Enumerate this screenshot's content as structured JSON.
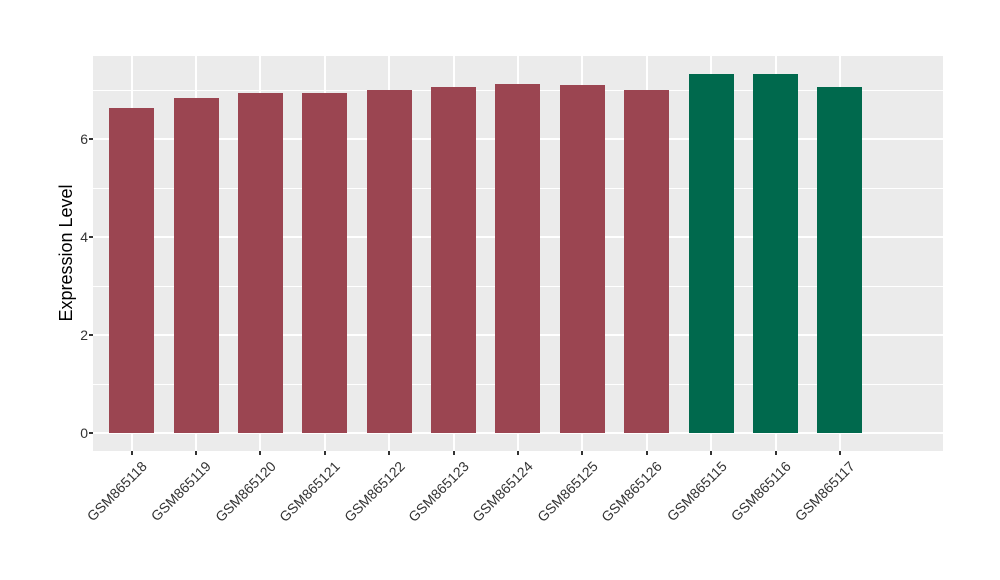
{
  "figure": {
    "background_color": "#FFFFFF",
    "panel_background_color": "#EBEBEB",
    "gridline_color": "#FFFFFF",
    "axis_text_color": "#333333",
    "axis_title_color": "#000000",
    "tick_mark_color": "#333333"
  },
  "chart_data": {
    "type": "bar",
    "title": "",
    "xlabel": "",
    "ylabel": "Expression Level",
    "categories": [
      "GSM865118",
      "GSM865119",
      "GSM865120",
      "GSM865121",
      "GSM865122",
      "GSM865123",
      "GSM865124",
      "GSM865125",
      "GSM865126",
      "GSM865115",
      "GSM865116",
      "GSM865117"
    ],
    "values": [
      6.63,
      6.84,
      6.94,
      6.93,
      7.01,
      7.06,
      7.13,
      7.1,
      6.99,
      7.32,
      7.32,
      7.06
    ],
    "bar_colors": [
      "#9B4551",
      "#9B4551",
      "#9B4551",
      "#9B4551",
      "#9B4551",
      "#9B4551",
      "#9B4551",
      "#9B4551",
      "#9B4551",
      "#00694D",
      "#00694D",
      "#00694D"
    ],
    "color_groups": {
      "maroon": "#9B4551",
      "green": "#00694D"
    },
    "yticks": [
      0,
      2,
      4,
      6
    ],
    "ytick_labels": [
      "0",
      "2",
      "4",
      "6"
    ],
    "yticks_minor": [
      1,
      3,
      5,
      7
    ],
    "ylim": [
      -0.37,
      7.69
    ],
    "grid": true,
    "legend": "none"
  }
}
